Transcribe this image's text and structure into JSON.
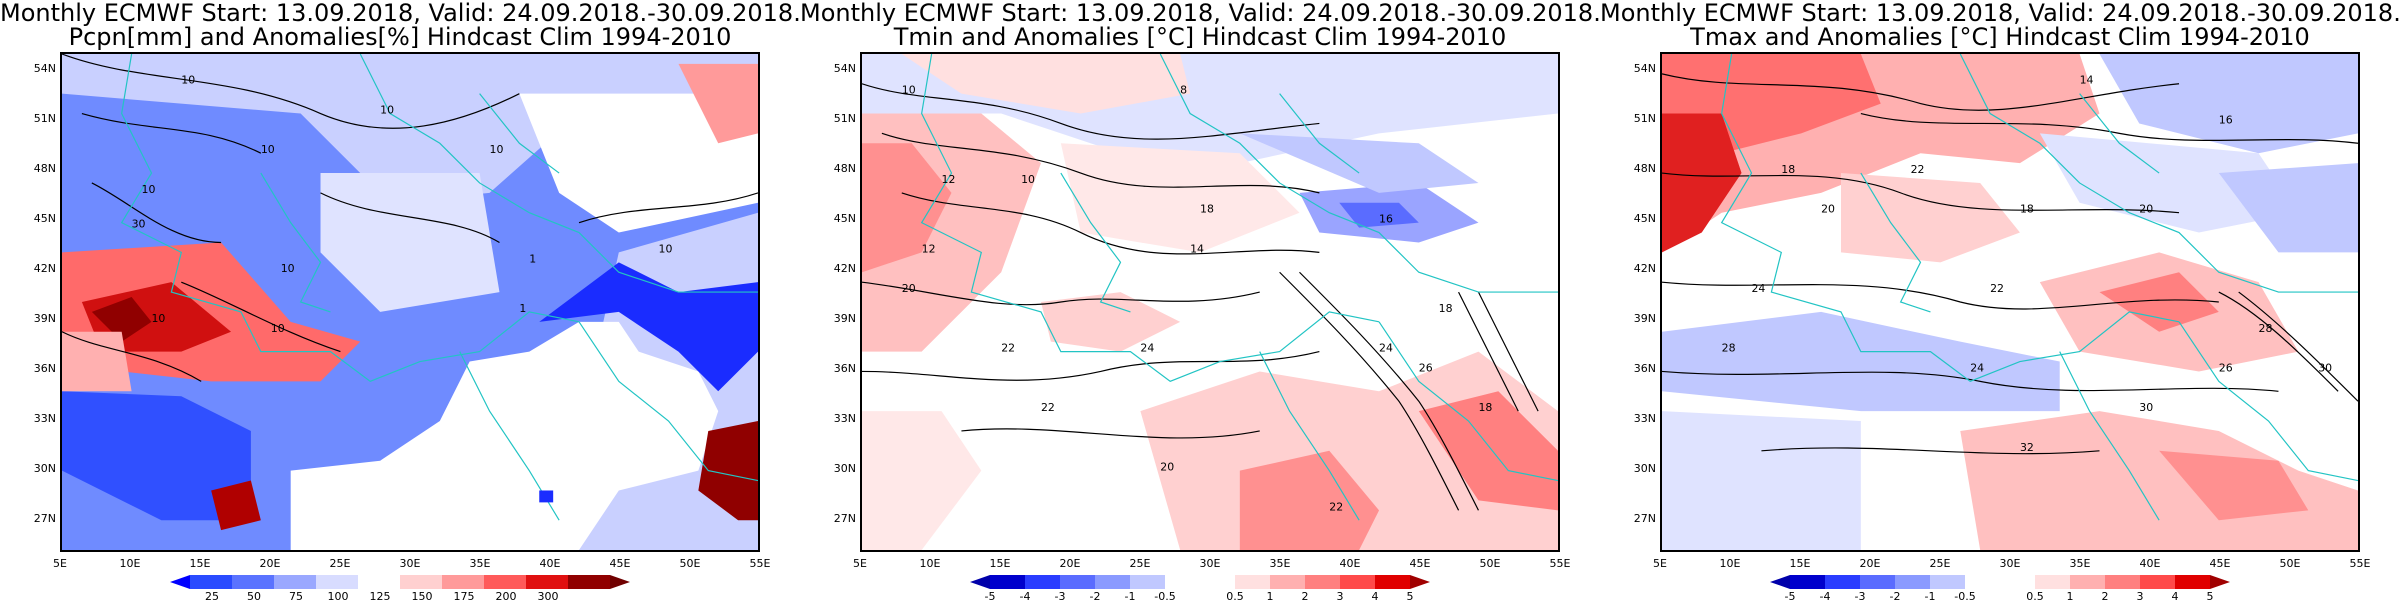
{
  "panels": [
    {
      "title_line1": "Monthly ECMWF Start: 13.09.2018, Valid: 24.09.2018.-30.09.2018.",
      "title_line2": "Pcpn[mm] and Anomalies[%] Hindcast Clim 1994-2010",
      "lat_labels": [
        "54N",
        "51N",
        "48N",
        "45N",
        "42N",
        "39N",
        "36N",
        "33N",
        "30N",
        "27N"
      ],
      "lon_labels": [
        "5E",
        "10E",
        "15E",
        "20E",
        "25E",
        "30E",
        "35E",
        "40E",
        "45E",
        "50E",
        "55E"
      ],
      "colorbar_labels": [
        "25",
        "50",
        "75",
        "100",
        "125",
        "150",
        "175",
        "200",
        "300"
      ],
      "contour_labels": [
        "10",
        "10",
        "10",
        "10",
        "10",
        "30",
        "10",
        "1",
        "10",
        "10",
        "1",
        "10"
      ]
    },
    {
      "title_line1": "Monthly ECMWF Start: 13.09.2018, Valid: 24.09.2018.-30.09.2018.",
      "title_line2": "Tmin and Anomalies [°C] Hindcast Clim 1994-2010",
      "lat_labels": [
        "54N",
        "51N",
        "48N",
        "45N",
        "42N",
        "39N",
        "36N",
        "33N",
        "30N",
        "27N"
      ],
      "lon_labels": [
        "5E",
        "10E",
        "15E",
        "20E",
        "25E",
        "30E",
        "35E",
        "40E",
        "45E",
        "50E",
        "55E"
      ],
      "colorbar_labels": [
        "-5",
        "-4",
        "-3",
        "-2",
        "-1",
        "-0.5",
        "0.5",
        "1",
        "2",
        "3",
        "4",
        "5"
      ],
      "contour_labels": [
        "10",
        "8",
        "12",
        "10",
        "18",
        "12",
        "14",
        "16",
        "20",
        "22",
        "24",
        "18",
        "22",
        "20",
        "26",
        "24",
        "18",
        "22"
      ]
    },
    {
      "title_line1": "Monthly ECMWF Start: 13.09.2018, Valid: 24.09.2018.-30.09.2018.",
      "title_line2": "Tmax and Anomalies [°C] Hindcast Clim 1994-2010",
      "lat_labels": [
        "54N",
        "51N",
        "48N",
        "45N",
        "42N",
        "39N",
        "36N",
        "33N",
        "30N",
        "27N"
      ],
      "lon_labels": [
        "5E",
        "10E",
        "15E",
        "20E",
        "25E",
        "30E",
        "35E",
        "40E",
        "45E",
        "50E",
        "55E"
      ],
      "colorbar_labels": [
        "-5",
        "-4",
        "-3",
        "-2",
        "-1",
        "-0.5",
        "0.5",
        "1",
        "2",
        "3",
        "4",
        "5"
      ],
      "contour_labels": [
        "14",
        "16",
        "18",
        "20",
        "22",
        "24",
        "18",
        "20",
        "22",
        "24",
        "26",
        "28",
        "30",
        "32",
        "28",
        "30"
      ]
    }
  ],
  "colors": {
    "precip_scale": [
      "#0000ff",
      "#2a4bff",
      "#5a73ff",
      "#9aa8ff",
      "#d8dcff",
      "#ffffff",
      "#ffd0d0",
      "#ff9a9a",
      "#ff5a5a",
      "#e01010",
      "#900000"
    ],
    "temp_scale": [
      "#0000cc",
      "#2a3cff",
      "#5a6cff",
      "#8a9aff",
      "#c0c8ff",
      "#ffffff",
      "#ffe0e0",
      "#ffb0b0",
      "#ff8080",
      "#ff4a4a",
      "#e00000",
      "#a00000"
    ],
    "coast": "#22c4c4"
  }
}
